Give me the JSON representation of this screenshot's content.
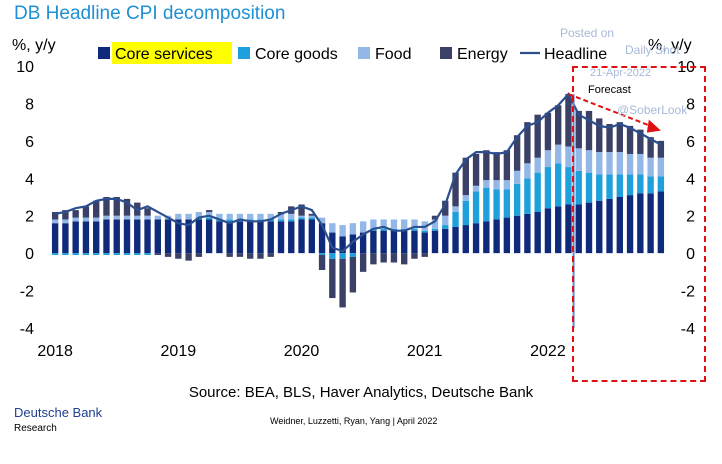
{
  "title": "DB Headline CPI decomposition",
  "ylabel_left": "%, y/y",
  "ylabel_right": "%, y/y",
  "source": "Source: BEA, BLS, Haver Analytics, Deutsche Bank",
  "brand": "Deutsche Bank",
  "brand_sub": "Research",
  "credit": "Weidner, Luzzetti, Ryan, Yang  | April 2022",
  "forecast_label": "Forecast",
  "watermark": {
    "line1": "Posted on",
    "line2": "Daily Shot",
    "line3": "21-Apr-2022",
    "line4": "@SoberLook"
  },
  "colors": {
    "core_services": "#0f2a7a",
    "core_goods": "#1ea0dc",
    "food": "#93b8e8",
    "energy": "#3a4066",
    "headline": "#2c4f8f",
    "highlight": "#ffff00",
    "forecast_marker": "#e01010"
  },
  "chart_data": {
    "type": "bar",
    "stacked": true,
    "x_ticks": [
      "2018",
      "2019",
      "2020",
      "2021",
      "2022"
    ],
    "ylim": [
      -4,
      10
    ],
    "y_ticks": [
      "10",
      "8",
      "6",
      "4",
      "2",
      "0",
      "-2",
      "-4"
    ],
    "grid": false,
    "legend_position": "top",
    "x_start": "2018-01",
    "x_freq": "monthly",
    "series": [
      {
        "name": "Core services",
        "key": "cs",
        "highlighted": true,
        "values": [
          1.6,
          1.6,
          1.7,
          1.7,
          1.7,
          1.8,
          1.8,
          1.8,
          1.8,
          1.8,
          1.8,
          1.8,
          1.8,
          1.8,
          1.8,
          1.8,
          1.7,
          1.7,
          1.7,
          1.7,
          1.7,
          1.7,
          1.7,
          1.7,
          1.8,
          1.8,
          1.6,
          1.1,
          0.9,
          1.0,
          1.1,
          1.2,
          1.2,
          1.2,
          1.2,
          1.2,
          1.1,
          1.2,
          1.3,
          1.4,
          1.5,
          1.6,
          1.7,
          1.8,
          1.9,
          2.0,
          2.1,
          2.2,
          2.4,
          2.5,
          2.6,
          2.6,
          2.7,
          2.8,
          2.9,
          3.0,
          3.1,
          3.2,
          3.2,
          3.3
        ]
      },
      {
        "name": "Core goods",
        "key": "cg",
        "values": [
          -0.1,
          -0.1,
          -0.1,
          -0.1,
          -0.1,
          -0.1,
          -0.1,
          -0.1,
          -0.1,
          -0.1,
          0.0,
          0.0,
          0.0,
          0.0,
          0.1,
          0.1,
          0.1,
          0.1,
          0.1,
          0.1,
          0.1,
          0.1,
          0.1,
          0.1,
          0.1,
          0.1,
          -0.1,
          -0.3,
          -0.3,
          -0.2,
          0.0,
          0.1,
          0.1,
          0.1,
          0.1,
          0.1,
          0.1,
          0.1,
          0.2,
          0.8,
          1.3,
          1.7,
          1.8,
          1.6,
          1.5,
          1.7,
          1.9,
          2.1,
          2.2,
          2.3,
          2.0,
          1.8,
          1.6,
          1.4,
          1.3,
          1.2,
          1.1,
          1.0,
          0.9,
          0.8
        ]
      },
      {
        "name": "Food",
        "key": "fd",
        "values": [
          0.2,
          0.2,
          0.2,
          0.2,
          0.2,
          0.2,
          0.2,
          0.2,
          0.2,
          0.2,
          0.2,
          0.2,
          0.3,
          0.3,
          0.3,
          0.3,
          0.3,
          0.3,
          0.3,
          0.3,
          0.3,
          0.3,
          0.3,
          0.3,
          0.1,
          0.1,
          0.3,
          0.5,
          0.6,
          0.6,
          0.6,
          0.5,
          0.5,
          0.5,
          0.5,
          0.5,
          0.5,
          0.5,
          0.5,
          0.3,
          0.3,
          0.3,
          0.4,
          0.5,
          0.5,
          0.7,
          0.8,
          0.8,
          0.9,
          1.0,
          1.1,
          1.2,
          1.2,
          1.2,
          1.2,
          1.2,
          1.1,
          1.1,
          1.0,
          1.0
        ]
      },
      {
        "name": "Energy",
        "key": "en",
        "values": [
          0.4,
          0.5,
          0.4,
          0.6,
          0.9,
          1.0,
          1.0,
          0.9,
          0.7,
          0.4,
          -0.1,
          -0.2,
          -0.3,
          -0.4,
          -0.2,
          0.1,
          0.0,
          -0.2,
          -0.2,
          -0.3,
          -0.3,
          -0.2,
          0.1,
          0.4,
          0.6,
          0.1,
          -0.8,
          -2.1,
          -2.6,
          -1.9,
          -1.0,
          -0.6,
          -0.5,
          -0.5,
          -0.6,
          -0.3,
          -0.2,
          0.2,
          0.8,
          1.8,
          2.0,
          1.7,
          1.6,
          1.5,
          1.6,
          1.9,
          2.2,
          2.3,
          2.0,
          2.1,
          2.8,
          2.0,
          2.1,
          1.8,
          1.5,
          1.6,
          1.5,
          1.3,
          1.1,
          0.9
        ]
      }
    ],
    "headline": {
      "name": "Headline",
      "values": [
        2.1,
        2.2,
        2.4,
        2.5,
        2.8,
        2.9,
        2.9,
        2.7,
        2.3,
        2.5,
        2.2,
        1.9,
        1.6,
        1.5,
        1.9,
        2.0,
        1.8,
        1.6,
        1.8,
        1.7,
        1.7,
        1.8,
        2.1,
        2.3,
        2.5,
        2.3,
        1.5,
        0.3,
        0.1,
        0.6,
        1.0,
        1.3,
        1.4,
        1.2,
        1.2,
        1.4,
        1.4,
        1.7,
        2.6,
        4.2,
        5.0,
        5.4,
        5.4,
        5.3,
        5.4,
        6.2,
        6.8,
        7.0,
        7.5,
        7.9,
        8.5,
        7.4,
        7.1,
        6.8,
        6.7,
        6.9,
        6.7,
        6.4,
        6.1,
        5.8
      ]
    },
    "forecast_start_index": 51
  }
}
